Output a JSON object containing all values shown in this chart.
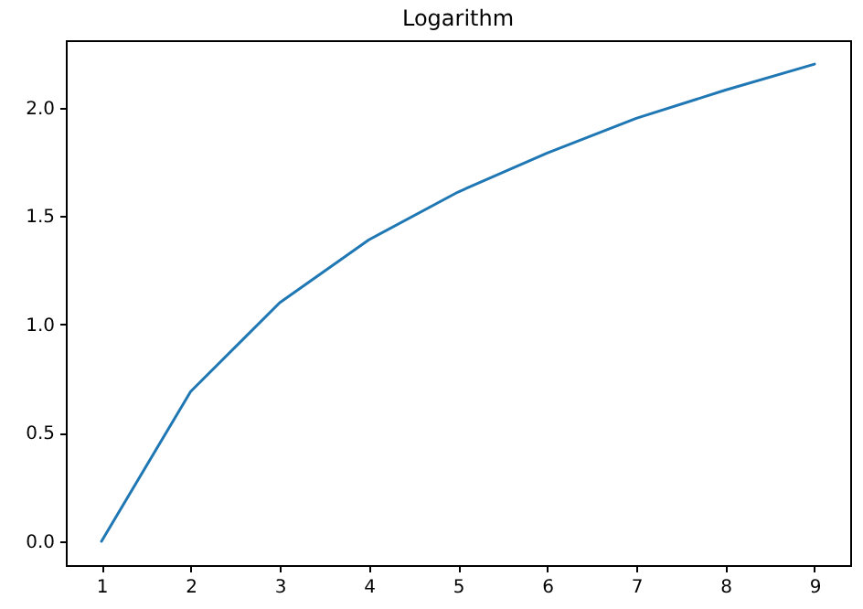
{
  "chart_data": {
    "type": "line",
    "title": "Logarithm",
    "x": [
      1,
      2,
      3,
      4,
      5,
      6,
      7,
      8,
      9
    ],
    "series": [
      {
        "color": "#1f77b4",
        "values": [
          0,
          0.69,
          1.1,
          1.39,
          1.61,
          1.79,
          1.95,
          2.08,
          2.2
        ]
      }
    ],
    "xlim": [
      0.6,
      9.4
    ],
    "xticks": [
      1,
      2,
      3,
      4,
      5,
      6,
      7,
      8,
      9
    ],
    "ylim": [
      -0.11,
      2.31
    ],
    "yticks": [
      {
        "value": 0,
        "label": "0.0"
      },
      {
        "value": 0.5,
        "label": "0.5"
      },
      {
        "value": 1,
        "label": "1.0"
      },
      {
        "value": 1.5,
        "label": "1.5"
      },
      {
        "value": 2,
        "label": "2.0"
      }
    ],
    "grid": false,
    "marker": "none",
    "line_style": "solid"
  }
}
